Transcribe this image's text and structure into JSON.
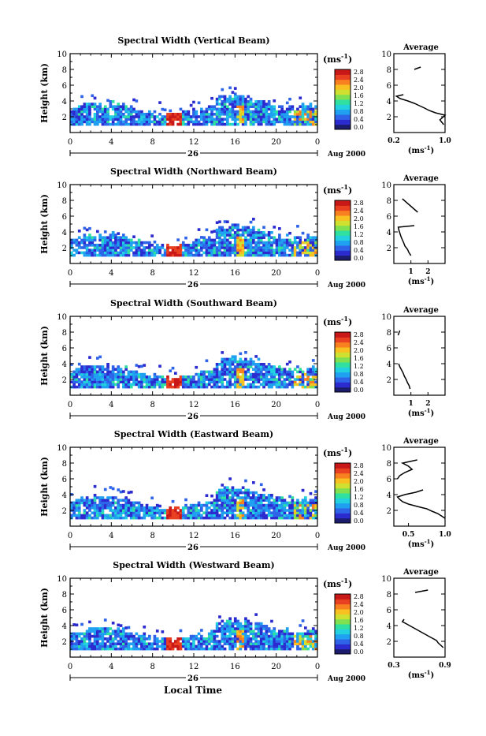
{
  "figure": {
    "xlabel": "Local Time",
    "date_day": "26",
    "date_month_year": "Aug 2000",
    "colorbar_unit_base": "(ms",
    "colorbar_unit_exp": "-1",
    "colorbar_unit_close": ")",
    "colorbar_ticks": [
      "0.0",
      "0.4",
      "0.8",
      "1.2",
      "1.6",
      "2.0",
      "2.4",
      "2.8"
    ],
    "colorbar_colors": [
      "#1c1c6e",
      "#2b2bd0",
      "#2f64e8",
      "#20a0f0",
      "#22d0e0",
      "#30e0a0",
      "#80e050",
      "#d0e030",
      "#f8c020",
      "#f88020",
      "#e84020",
      "#c81818"
    ]
  },
  "chart_data": [
    {
      "type": "heatmap",
      "title": "Spectral Width (Vertical Beam)",
      "ylabel": "Height (km)",
      "xlim": [
        0,
        24
      ],
      "ylim": [
        0,
        10
      ],
      "xticks": [
        "0",
        "4",
        "8",
        "12",
        "16",
        "20",
        "0"
      ],
      "yticks": [
        "2",
        "4",
        "6",
        "8",
        "10"
      ],
      "colorbar_range": [
        0,
        2.8
      ],
      "profile": {
        "title": "Average",
        "xlabel_base": "(ms",
        "xlabel_exp": "-1",
        "xlabel_close": ")",
        "xlim": [
          0.2,
          1.0
        ],
        "xticks": [
          "0.2",
          "1.0"
        ],
        "yticks": [
          "2",
          "4",
          "6",
          "8",
          "10"
        ],
        "heights": [
          1.0,
          1.3,
          1.6,
          1.9,
          2.2,
          2.5,
          2.8,
          3.1,
          3.4,
          3.7,
          4.0,
          4.3,
          4.6,
          4.8
        ],
        "values": [
          0.98,
          0.95,
          0.92,
          0.96,
          1.0,
          0.85,
          0.75,
          0.68,
          0.6,
          0.52,
          0.42,
          0.3,
          0.24,
          0.35
        ],
        "upper_heights": [
          8.0,
          8.3
        ],
        "upper_values": [
          0.52,
          0.62
        ]
      }
    },
    {
      "type": "heatmap",
      "title": "Spectral Width (Northward Beam)",
      "ylabel": "Height (km)",
      "xlim": [
        0,
        24
      ],
      "ylim": [
        0,
        10
      ],
      "xticks": [
        "0",
        "4",
        "8",
        "12",
        "16",
        "20",
        "0"
      ],
      "yticks": [
        "2",
        "4",
        "6",
        "8",
        "10"
      ],
      "colorbar_range": [
        0,
        2.8
      ],
      "profile": {
        "title": "Average",
        "xlabel_base": "(ms",
        "xlabel_exp": "-1",
        "xlabel_close": ")",
        "xlim": [
          0,
          3
        ],
        "xticks": [
          "1",
          "2"
        ],
        "yticks": [
          "2",
          "4",
          "6",
          "8",
          "10"
        ],
        "heights": [
          1.0,
          1.4,
          1.8,
          2.2,
          2.6,
          3.0,
          3.4,
          3.8,
          4.2,
          4.6,
          4.8
        ],
        "values": [
          1.0,
          0.88,
          0.8,
          0.65,
          0.58,
          0.5,
          0.42,
          0.36,
          0.3,
          0.26,
          1.2
        ],
        "upper_heights": [
          6.5,
          8.2
        ],
        "upper_values": [
          1.4,
          0.5
        ]
      }
    },
    {
      "type": "heatmap",
      "title": "Spectral Width (Southward Beam)",
      "ylabel": "Height (km)",
      "xlim": [
        0,
        24
      ],
      "ylim": [
        0,
        10
      ],
      "xticks": [
        "0",
        "4",
        "8",
        "12",
        "16",
        "20",
        "0"
      ],
      "yticks": [
        "2",
        "4",
        "6",
        "8",
        "10"
      ],
      "colorbar_range": [
        0,
        2.8
      ],
      "profile": {
        "title": "Average",
        "xlabel_base": "(ms",
        "xlabel_exp": "-1",
        "xlabel_close": ")",
        "xlim": [
          0,
          3
        ],
        "xticks": [
          "1",
          "2"
        ],
        "yticks": [
          "2",
          "4",
          "6",
          "8",
          "10"
        ],
        "heights": [
          0.8,
          1.2,
          1.6,
          2.0,
          2.4,
          2.8,
          3.2,
          3.6,
          4.0
        ],
        "values": [
          0.95,
          0.9,
          0.8,
          0.72,
          0.62,
          0.55,
          0.45,
          0.35,
          0.28
        ],
        "upper_heights": [
          7.6,
          8.2
        ],
        "upper_values": [
          0.25,
          0.35
        ]
      }
    },
    {
      "type": "heatmap",
      "title": "Spectral Width (Eastward Beam)",
      "ylabel": "Height (km)",
      "xlim": [
        0,
        24
      ],
      "ylim": [
        0,
        10
      ],
      "xticks": [
        "0",
        "4",
        "8",
        "12",
        "16",
        "20",
        "0"
      ],
      "yticks": [
        "2",
        "4",
        "6",
        "8",
        "10"
      ],
      "colorbar_range": [
        0,
        2.8
      ],
      "profile": {
        "title": "Average",
        "xlabel_base": "(ms",
        "xlabel_exp": "-1",
        "xlabel_close": ")",
        "xlim": [
          0.3,
          1.0
        ],
        "xticks": [
          "0.5",
          "1.0"
        ],
        "yticks": [
          "2",
          "4",
          "6",
          "8",
          "10"
        ],
        "heights": [
          1.0,
          1.3,
          1.6,
          1.9,
          2.2,
          2.5,
          2.8,
          3.1,
          3.4,
          3.7,
          4.0,
          4.3,
          4.6
        ],
        "values": [
          1.0,
          0.95,
          0.9,
          0.82,
          0.75,
          0.62,
          0.5,
          0.42,
          0.38,
          0.35,
          0.45,
          0.6,
          0.7
        ],
        "upper_heights": [
          6.0,
          6.4,
          6.8,
          7.2,
          7.6,
          8.0,
          8.4
        ],
        "upper_values": [
          0.35,
          0.38,
          0.45,
          0.55,
          0.5,
          0.42,
          0.62
        ]
      }
    },
    {
      "type": "heatmap",
      "title": "Spectral Width (Westward Beam)",
      "ylabel": "Height (km)",
      "xlim": [
        0,
        24
      ],
      "ylim": [
        0,
        10
      ],
      "xticks": [
        "0",
        "4",
        "8",
        "12",
        "16",
        "20",
        "0"
      ],
      "yticks": [
        "2",
        "4",
        "6",
        "8",
        "10"
      ],
      "colorbar_range": [
        0,
        2.8
      ],
      "profile": {
        "title": "Average",
        "xlabel_base": "(ms",
        "xlabel_exp": "-1",
        "xlabel_close": ")",
        "xlim": [
          0.3,
          0.9
        ],
        "xticks": [
          "0.3",
          "0.9"
        ],
        "yticks": [
          "2",
          "4",
          "6",
          "8",
          "10"
        ],
        "heights": [
          1.2,
          1.5,
          1.8,
          2.1,
          2.4,
          2.7,
          3.0,
          3.3,
          3.6,
          3.9,
          4.2,
          4.5,
          4.8
        ],
        "values": [
          0.88,
          0.85,
          0.82,
          0.8,
          0.75,
          0.7,
          0.65,
          0.6,
          0.55,
          0.5,
          0.45,
          0.4,
          0.42
        ],
        "upper_heights": [
          8.2,
          8.5
        ],
        "upper_values": [
          0.55,
          0.7
        ]
      }
    }
  ]
}
